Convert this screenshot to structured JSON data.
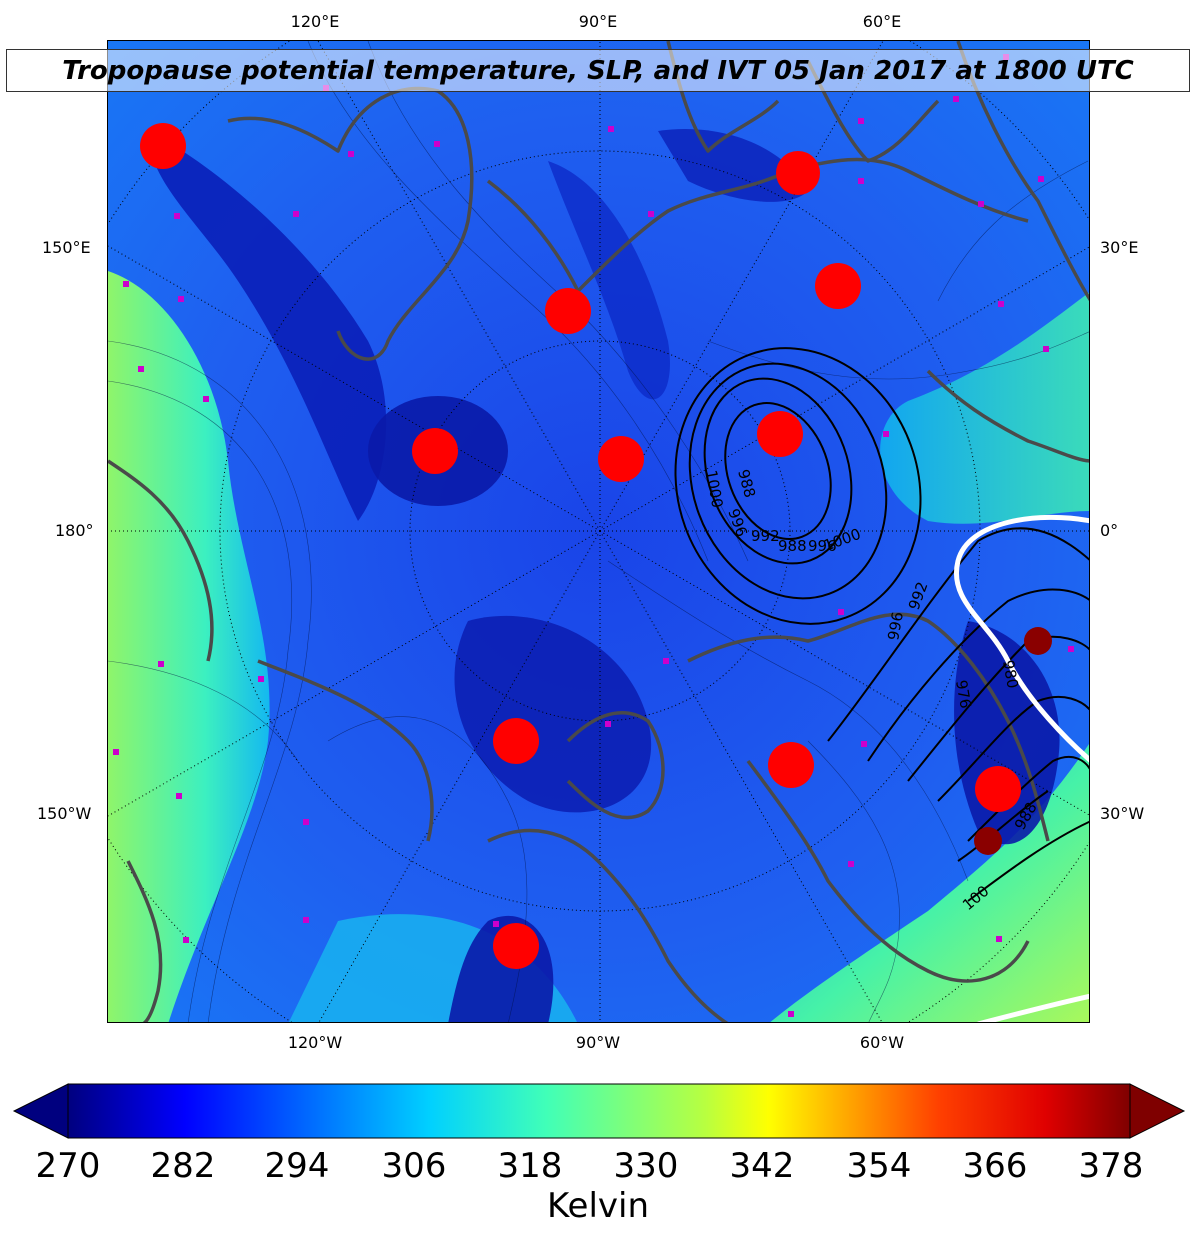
{
  "title": "Tropopause potential temperature, SLP, and IVT 05 Jan 2017 at 1800 UTC",
  "colorbar": {
    "label": "Kelvin",
    "ticks": [
      "270",
      "282",
      "294",
      "306",
      "318",
      "330",
      "342",
      "354",
      "366",
      "378"
    ],
    "min": 270,
    "max": 378,
    "colormap": "jet",
    "colors": [
      "#00007f",
      "#0000ff",
      "#007fff",
      "#00ffff",
      "#7fff7f",
      "#ffff00",
      "#ff7f00",
      "#ff0000",
      "#7f0000"
    ]
  },
  "graticule": {
    "top_labels": [
      "120°E",
      "90°E",
      "60°E"
    ],
    "bottom_labels": [
      "120°W",
      "90°W",
      "60°W"
    ],
    "left_labels": [
      "150°E",
      "180°",
      "150°W"
    ],
    "right_labels": [
      "30°E",
      "0°",
      "30°W"
    ]
  },
  "slp_contours": {
    "color": "#000000",
    "labels": [
      "1000",
      "988",
      "996",
      "992",
      "988",
      "996",
      "1000",
      "992",
      "996",
      "980",
      "976",
      "988",
      "100"
    ]
  },
  "ivt_contour_color": "#ffffff",
  "coastline_color": "#4a4a4a",
  "marker_color": "#cc00cc",
  "vortex_marker_color": "#ff0000"
}
